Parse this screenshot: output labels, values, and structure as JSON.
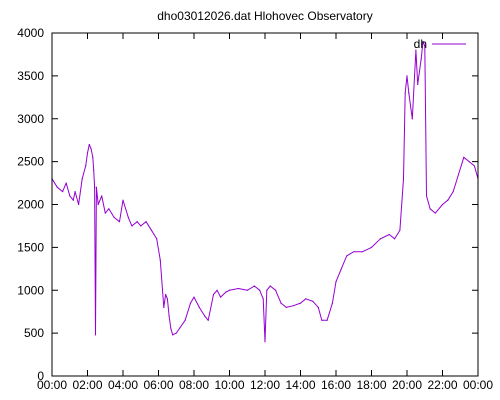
{
  "chart_data": {
    "type": "line",
    "title": "dho03012026.dat Hlohovec Observatory",
    "xlabel": "",
    "ylabel": "",
    "x_unit": "hours",
    "xlim": [
      0,
      24
    ],
    "ylim": [
      0,
      4000
    ],
    "x_ticks": [
      0,
      2,
      4,
      6,
      8,
      10,
      12,
      14,
      16,
      18,
      20,
      22,
      24
    ],
    "x_tick_labels": [
      "00:00",
      "02:00",
      "04:00",
      "06:00",
      "08:00",
      "10:00",
      "12:00",
      "14:00",
      "16:00",
      "18:00",
      "20:00",
      "22:00",
      "00:00"
    ],
    "y_ticks": [
      0,
      500,
      1000,
      1500,
      2000,
      2500,
      3000,
      3500,
      4000
    ],
    "y_tick_labels": [
      "0",
      "500",
      "1000",
      "1500",
      "2000",
      "2500",
      "3000",
      "3500",
      "4000"
    ],
    "grid": false,
    "legend_position": "top-right",
    "series": [
      {
        "name": "dh",
        "color": "#9400d3",
        "x": [
          0,
          0.3,
          0.6,
          0.8,
          1.0,
          1.2,
          1.3,
          1.5,
          1.7,
          1.9,
          2.0,
          2.1,
          2.2,
          2.3,
          2.35,
          2.4,
          2.45,
          2.5,
          2.6,
          2.8,
          3.0,
          3.2,
          3.5,
          3.8,
          4.0,
          4.3,
          4.5,
          4.8,
          5.0,
          5.3,
          5.6,
          5.9,
          6.1,
          6.3,
          6.4,
          6.5,
          6.6,
          6.7,
          6.8,
          7.0,
          7.2,
          7.5,
          7.8,
          8.0,
          8.3,
          8.6,
          8.8,
          9.1,
          9.3,
          9.5,
          9.8,
          10.0,
          10.5,
          11.0,
          11.4,
          11.7,
          11.9,
          12.0,
          12.1,
          12.3,
          12.6,
          12.9,
          13.2,
          13.6,
          14.0,
          14.3,
          14.7,
          15.0,
          15.2,
          15.5,
          15.8,
          16.0,
          16.3,
          16.6,
          17.0,
          17.5,
          18.0,
          18.5,
          19.0,
          19.3,
          19.6,
          19.8,
          19.9,
          20.0,
          20.1,
          20.3,
          20.5,
          20.6,
          20.8,
          20.9,
          21.0,
          21.1,
          21.3,
          21.6,
          22.0,
          22.3,
          22.6,
          22.9,
          23.2,
          23.5,
          23.8,
          24.0
        ],
        "y": [
          2300,
          2200,
          2150,
          2250,
          2100,
          2050,
          2150,
          2000,
          2300,
          2450,
          2600,
          2700,
          2650,
          2550,
          2400,
          2200,
          480,
          2200,
          2000,
          2100,
          1900,
          1950,
          1850,
          1800,
          2050,
          1850,
          1750,
          1800,
          1750,
          1800,
          1700,
          1600,
          1350,
          800,
          950,
          900,
          700,
          550,
          480,
          500,
          560,
          650,
          850,
          920,
          800,
          700,
          650,
          950,
          1000,
          920,
          980,
          1000,
          1020,
          1000,
          1050,
          1000,
          900,
          400,
          1000,
          1050,
          1000,
          850,
          800,
          820,
          850,
          900,
          870,
          800,
          650,
          650,
          850,
          1100,
          1250,
          1400,
          1450,
          1450,
          1500,
          1600,
          1650,
          1600,
          1700,
          2300,
          3300,
          3500,
          3300,
          3000,
          3800,
          3400,
          3700,
          3900,
          3850,
          2100,
          1950,
          1900,
          2000,
          2050,
          2150,
          2350,
          2550,
          2500,
          2450,
          2300
        ]
      }
    ]
  }
}
